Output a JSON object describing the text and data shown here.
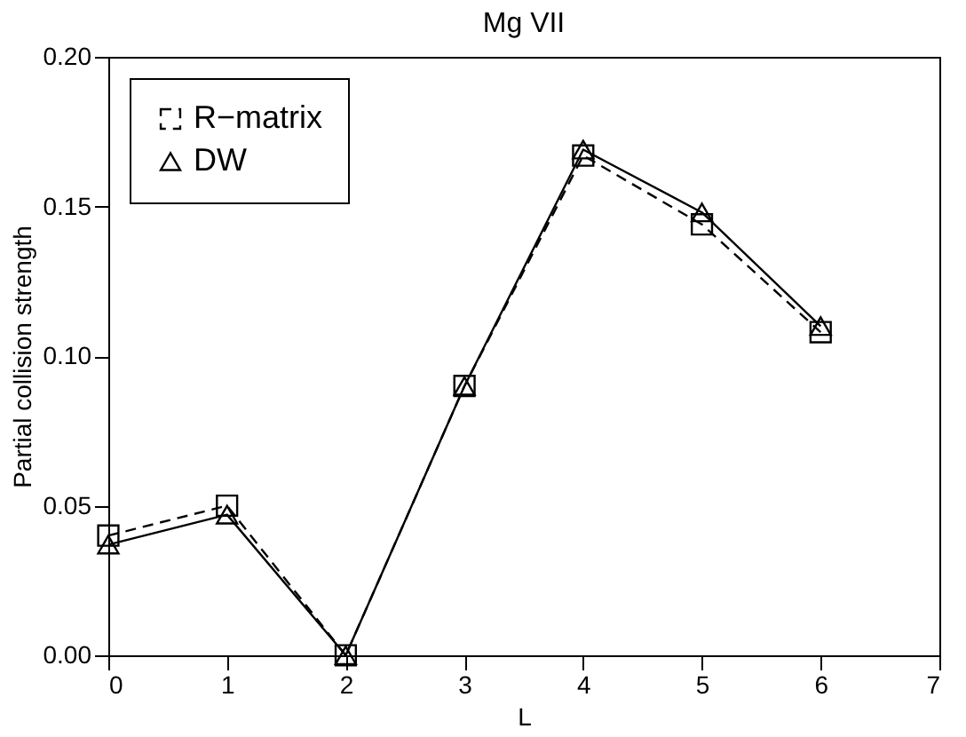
{
  "chart_data": {
    "type": "line",
    "title": "Mg VII",
    "xlabel": "L",
    "ylabel": "Partial collision strength",
    "x": [
      0,
      1,
      2,
      3,
      4,
      5,
      6
    ],
    "series": [
      {
        "name": "R−matrix",
        "color": "#000000",
        "marker": "square",
        "line_style": "dashed",
        "values": [
          0.04,
          0.05,
          0.0,
          0.09,
          0.167,
          0.144,
          0.108
        ]
      },
      {
        "name": "DW",
        "color": "#000000",
        "marker": "triangle",
        "line_style": "solid",
        "values": [
          0.037,
          0.047,
          0.0,
          0.09,
          0.169,
          0.148,
          0.11
        ]
      }
    ],
    "xlim": [
      0,
      7
    ],
    "ylim": [
      0,
      0.2
    ],
    "xticks": [
      0,
      1,
      2,
      3,
      4,
      5,
      6,
      7
    ],
    "yticks": [
      {
        "value": 0,
        "label": "0.00"
      },
      {
        "value": 0.05,
        "label": "0.05"
      },
      {
        "value": 0.1,
        "label": "0.10"
      },
      {
        "value": 0.15,
        "label": "0.15"
      },
      {
        "value": 0.2,
        "label": "0.20"
      }
    ],
    "grid": false,
    "legend": "top left"
  }
}
